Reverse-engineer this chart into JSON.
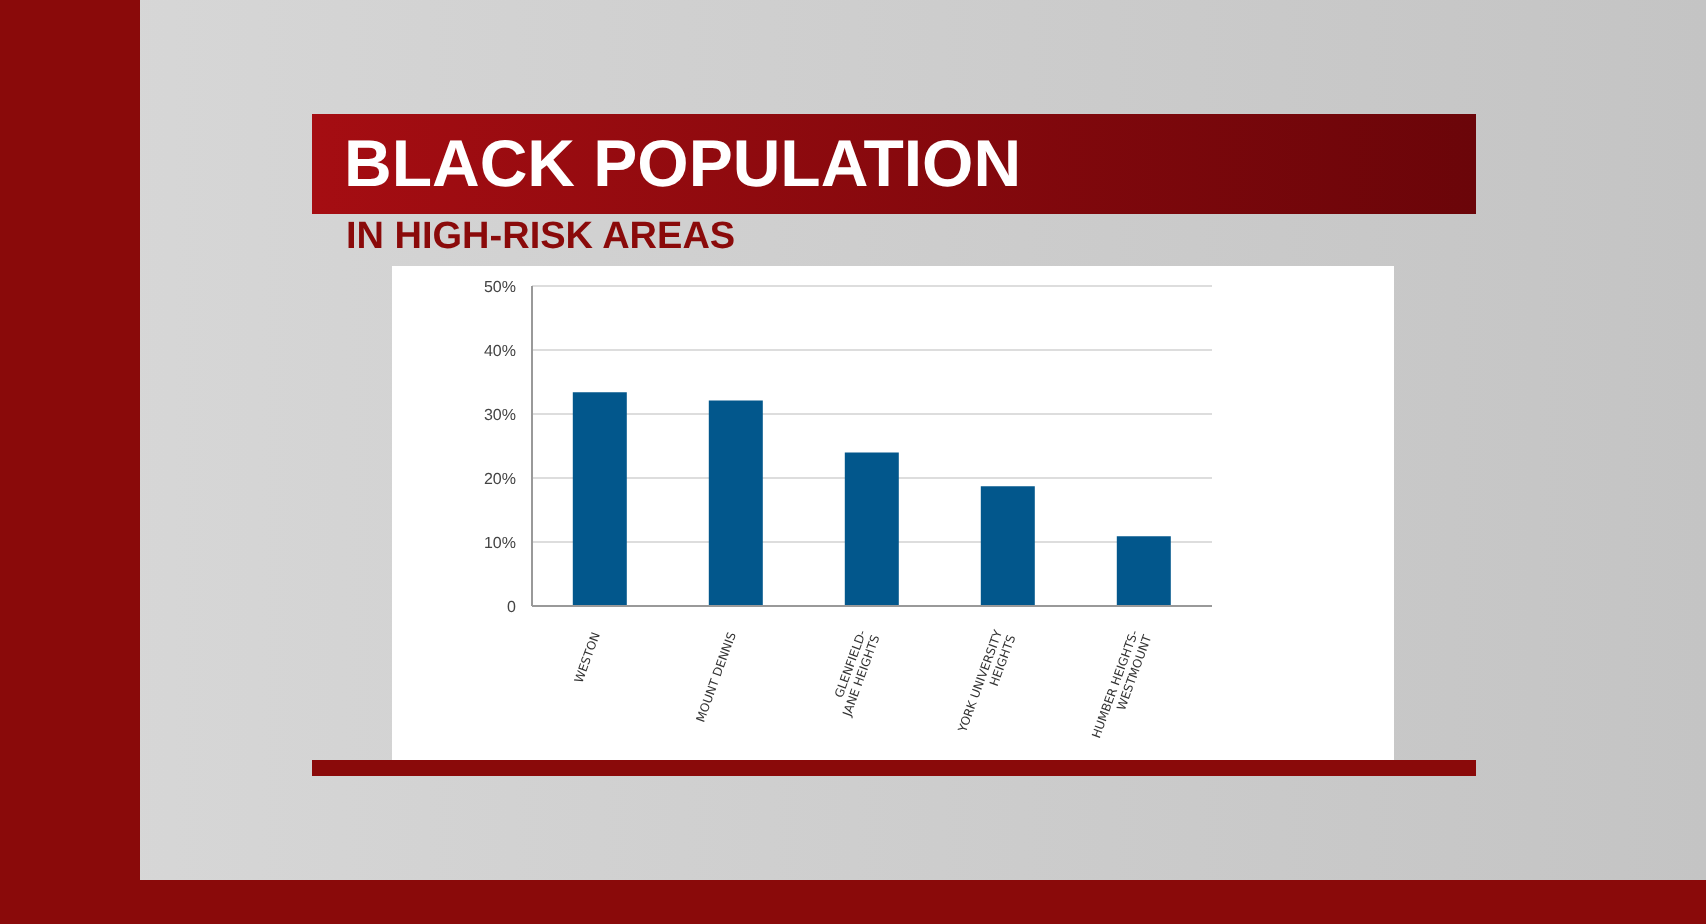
{
  "chart_data": {
    "type": "bar",
    "title": "BLACK POPULATION",
    "subtitle": "IN HIGH-RISK AREAS",
    "categories": [
      "WESTON",
      "MOUNT DENNIS",
      "GLENFIELD-JANE HEIGHTS",
      "YORK UNIVERSITY HEIGHTS",
      "HUMBER HEIGHTS-WESTMOUNT"
    ],
    "values": [
      33.4,
      32.1,
      24.0,
      18.7,
      10.9
    ],
    "color": "#02578c",
    "ylim": [
      0,
      50
    ],
    "yticks": [
      {
        "value": 0,
        "label": "0"
      },
      {
        "value": 10,
        "label": "10%"
      },
      {
        "value": 20,
        "label": "20%"
      },
      {
        "value": 30,
        "label": "30%"
      },
      {
        "value": 40,
        "label": "40%"
      },
      {
        "value": 50,
        "label": "50%"
      }
    ],
    "grid": "y"
  }
}
